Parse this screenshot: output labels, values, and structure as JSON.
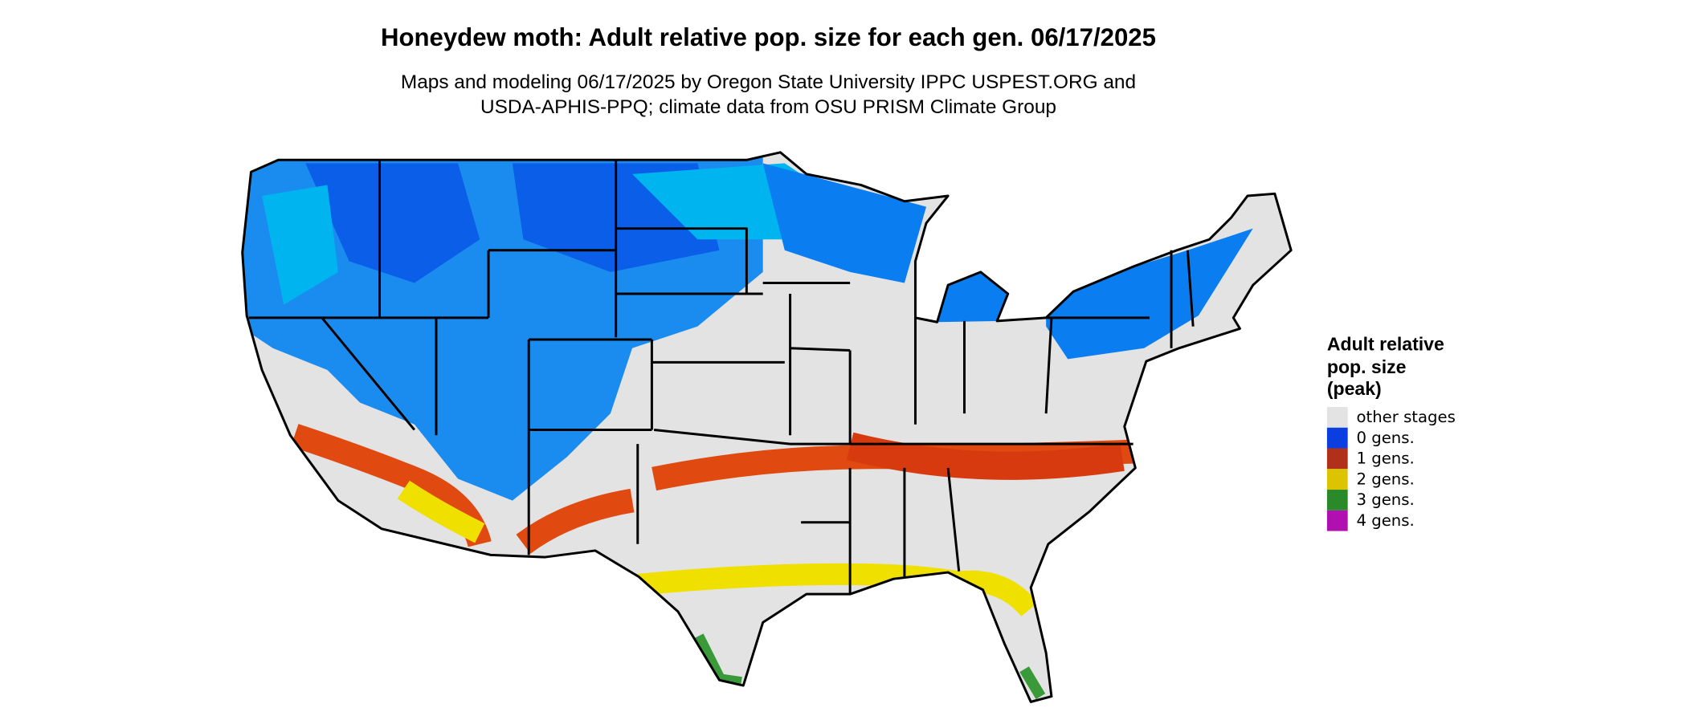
{
  "title": "Honeydew moth: Adult relative pop. size for each gen. 06/17/2025",
  "subtitle": [
    "Maps and modeling 06/17/2025 by Oregon State University IPPC USPEST.ORG and",
    "USDA-APHIS-PPQ; climate data from OSU PRISM Climate Group"
  ],
  "legend": {
    "title": [
      "Adult relative",
      "pop. size",
      "(peak)"
    ],
    "items": [
      {
        "label": "other stages",
        "color": "#e3e3e3"
      },
      {
        "label": "0 gens.",
        "color": "#0a3ee0"
      },
      {
        "label": "1 gens.",
        "color": "#b0301a"
      },
      {
        "label": "2 gens.",
        "color": "#dcc400"
      },
      {
        "label": "3 gens.",
        "color": "#2a8a2a"
      },
      {
        "label": "4 gens.",
        "color": "#b010b0"
      }
    ]
  }
}
